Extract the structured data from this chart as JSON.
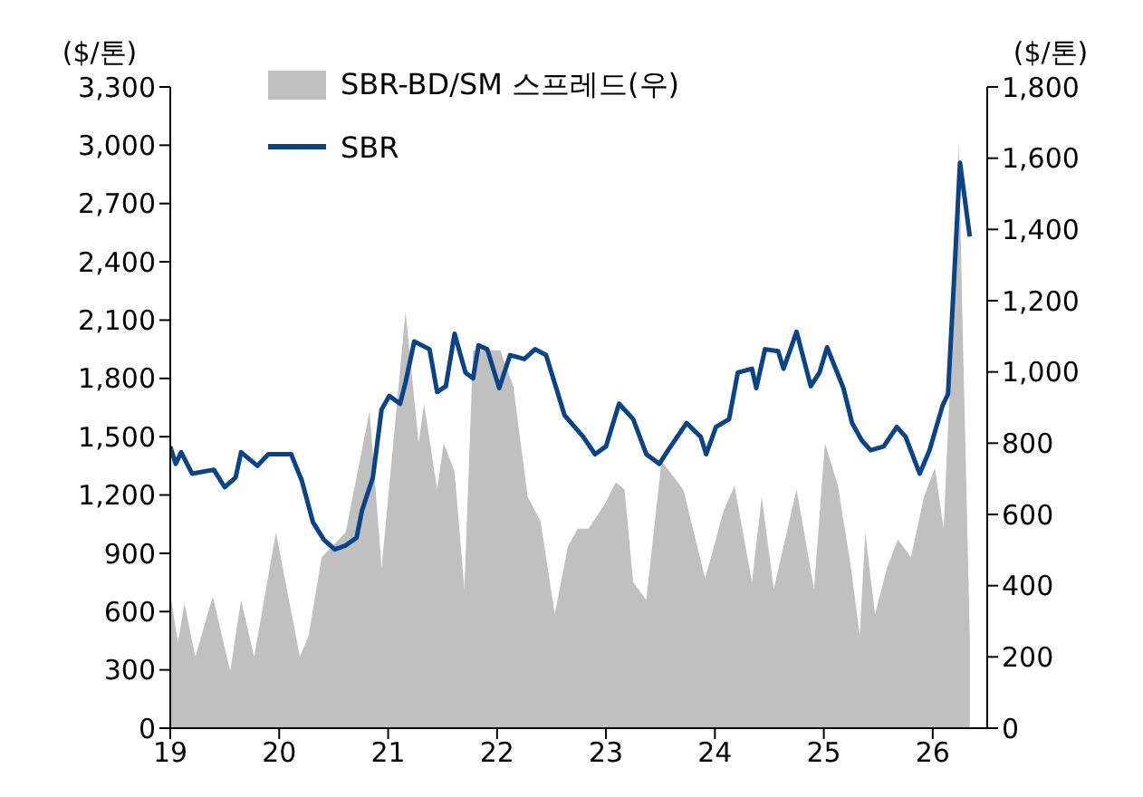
{
  "chart_data": {
    "type": "line",
    "ylabel": "($/톤)",
    "y2label": "($/톤)",
    "xlim": [
      2019,
      2026.5
    ],
    "xticks": [
      {
        "value": 2019,
        "label": "19"
      },
      {
        "value": 2020,
        "label": "20"
      },
      {
        "value": 2021,
        "label": "21"
      },
      {
        "value": 2022,
        "label": "22"
      },
      {
        "value": 2023,
        "label": "23"
      },
      {
        "value": 2024,
        "label": "24"
      },
      {
        "value": 2025,
        "label": "25"
      },
      {
        "value": 2026,
        "label": "26"
      }
    ],
    "ylim": [
      0,
      3300
    ],
    "yticks": [
      0,
      300,
      600,
      900,
      {
        "value": 1200,
        "label": "1,200"
      },
      {
        "value": 1500,
        "label": "1,500"
      },
      {
        "value": 1800,
        "label": "1,800"
      },
      {
        "value": 2100,
        "label": "2,100"
      },
      {
        "value": 2400,
        "label": "2,400"
      },
      {
        "value": 2700,
        "label": "2,700"
      },
      {
        "value": 3000,
        "label": "3,000"
      },
      {
        "value": 3300,
        "label": "3,300"
      }
    ],
    "y2lim": [
      0,
      1800
    ],
    "y2ticks": [
      0,
      200,
      400,
      600,
      800,
      {
        "value": 1000,
        "label": "1,000"
      },
      {
        "value": 1200,
        "label": "1,200"
      },
      {
        "value": 1400,
        "label": "1,400"
      },
      {
        "value": 1600,
        "label": "1,600"
      },
      {
        "value": 1800,
        "label": "1,800"
      }
    ],
    "legend": "top left",
    "marker": "none",
    "series": [
      {
        "name": "SBR-BD/SM 스프레드(우)",
        "type": "area",
        "axis": "y2",
        "color": "#c0c0c0",
        "x": [
          2019,
          2019.07,
          2019.13,
          2019.23,
          2019.39,
          2019.55,
          2019.65,
          2019.77,
          2019.97,
          2020.19,
          2020.27,
          2020.39,
          2020.61,
          2020.83,
          2020.94,
          2021.16,
          2021.28,
          2021.33,
          2021.45,
          2021.51,
          2021.61,
          2021.7,
          2021.78,
          2021.9,
          2022.03,
          2022.15,
          2022.28,
          2022.4,
          2022.53,
          2022.65,
          2022.74,
          2022.84,
          2022.99,
          2023.09,
          2023.17,
          2023.25,
          2023.37,
          2023.51,
          2023.71,
          2023.91,
          2024.08,
          2024.18,
          2024.34,
          2024.43,
          2024.54,
          2024.75,
          2024.91,
          2025.01,
          2025.13,
          2025.25,
          2025.33,
          2025.38,
          2025.47,
          2025.58,
          2025.68,
          2025.8,
          2025.92,
          2026.02,
          2026.1,
          2026.19,
          2026.24,
          2026.27,
          2026.34
        ],
        "values": [
          380,
          240,
          350,
          200,
          370,
          160,
          360,
          200,
          550,
          200,
          260,
          480,
          550,
          890,
          450,
          1170,
          800,
          910,
          670,
          800,
          720,
          390,
          1060,
          1060,
          1060,
          960,
          650,
          580,
          320,
          510,
          560,
          560,
          630,
          690,
          670,
          410,
          360,
          750,
          670,
          420,
          610,
          680,
          410,
          650,
          390,
          670,
          390,
          800,
          680,
          450,
          260,
          550,
          320,
          450,
          530,
          480,
          650,
          730,
          560,
          1190,
          1650,
          1180,
          260
        ]
      },
      {
        "name": "SBR",
        "color": "#0b4387",
        "x": [
          2019,
          2019.05,
          2019.1,
          2019.2,
          2019.4,
          2019.5,
          2019.6,
          2019.65,
          2019.8,
          2019.9,
          2020.11,
          2020.21,
          2020.31,
          2020.41,
          2020.51,
          2020.61,
          2020.71,
          2020.76,
          2020.86,
          2020.94,
          2021.01,
          2021.11,
          2021.16,
          2021.24,
          2021.38,
          2021.45,
          2021.53,
          2021.61,
          2021.71,
          2021.78,
          2021.83,
          2021.91,
          2022.02,
          2022.12,
          2022.25,
          2022.35,
          2022.45,
          2022.62,
          2022.79,
          2022.9,
          2023,
          2023.12,
          2023.25,
          2023.37,
          2023.49,
          2023.57,
          2023.74,
          2023.87,
          2023.92,
          2024.01,
          2024.13,
          2024.21,
          2024.34,
          2024.38,
          2024.46,
          2024.58,
          2024.63,
          2024.75,
          2024.88,
          2024.96,
          2025.03,
          2025.18,
          2025.26,
          2025.35,
          2025.43,
          2025.55,
          2025.67,
          2025.75,
          2025.88,
          2025.97,
          2026.09,
          2026.14,
          2026.19,
          2026.25,
          2026.34
        ],
        "values": [
          1450,
          1360,
          1420,
          1310,
          1330,
          1240,
          1290,
          1420,
          1350,
          1410,
          1410,
          1270,
          1060,
          970,
          920,
          940,
          980,
          1120,
          1290,
          1640,
          1710,
          1670,
          1780,
          1990,
          1950,
          1730,
          1760,
          2030,
          1830,
          1800,
          1970,
          1950,
          1750,
          1920,
          1900,
          1950,
          1920,
          1610,
          1500,
          1410,
          1450,
          1670,
          1590,
          1410,
          1360,
          1430,
          1570,
          1500,
          1410,
          1550,
          1590,
          1830,
          1850,
          1750,
          1950,
          1940,
          1850,
          2040,
          1760,
          1830,
          1960,
          1750,
          1570,
          1480,
          1430,
          1450,
          1550,
          1500,
          1310,
          1430,
          1660,
          1720,
          2250,
          2910,
          2530
        ]
      }
    ]
  }
}
